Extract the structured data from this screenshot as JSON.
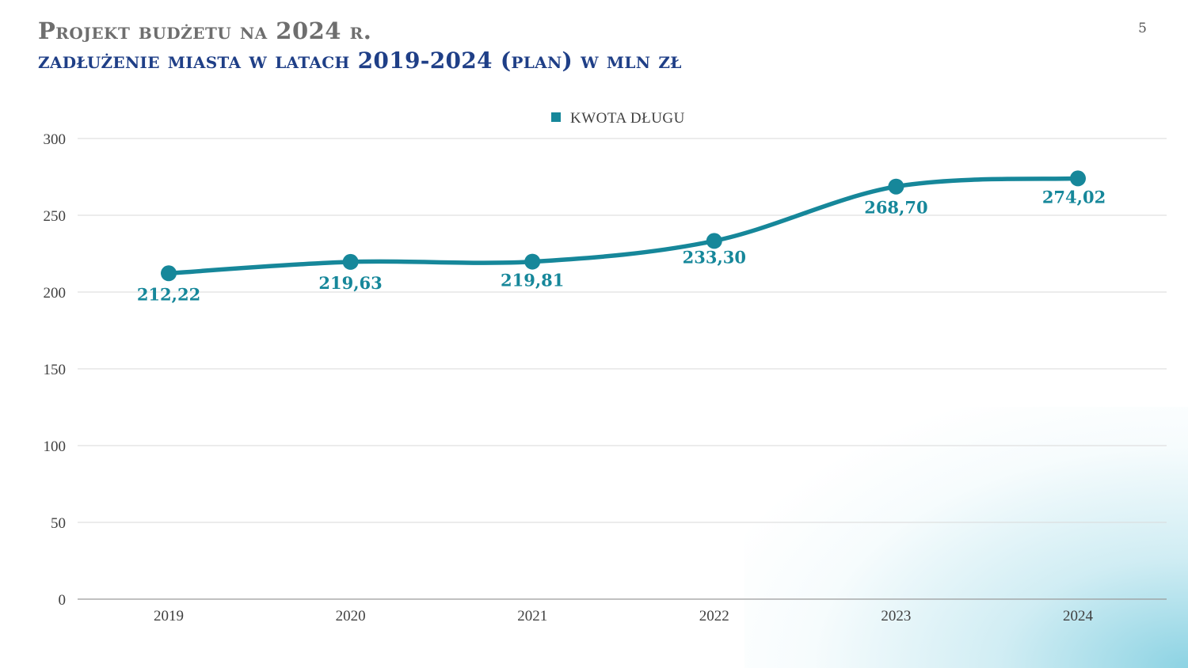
{
  "header": {
    "title": "Projekt budżetu na 2024 r.",
    "subtitle": "zadłużenie miasta w latach 2019-2024 (plan) w mln zł",
    "page_number": "5"
  },
  "colors": {
    "series": "#16879a",
    "title_primary": "#6e6e6e",
    "title_secondary": "#1f3f87",
    "grid": "#d9d9d9"
  },
  "chart_data": {
    "type": "line",
    "smooth": true,
    "title": "zadłużenie miasta w latach 2019-2024 (plan) w mln zł",
    "categories": [
      "2019",
      "2020",
      "2021",
      "2022",
      "2023",
      "2024"
    ],
    "series": [
      {
        "name": "KWOTA DŁUGU",
        "values": [
          212.22,
          219.63,
          219.81,
          233.3,
          268.7,
          274.02
        ],
        "labels": [
          "212,22",
          "219,63",
          "219,81",
          "233,30",
          "268,70",
          "274,02"
        ]
      }
    ],
    "ylim": [
      0,
      300
    ],
    "yticks": [
      0,
      50,
      100,
      150,
      200,
      250,
      300
    ],
    "grid": true,
    "legend": "top-center",
    "xlabel": "",
    "ylabel": ""
  }
}
